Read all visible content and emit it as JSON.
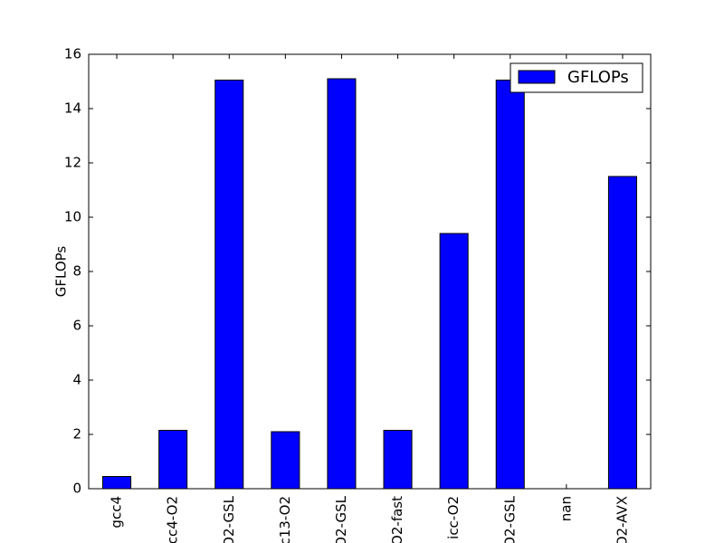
{
  "chart_data": {
    "type": "bar",
    "y_label": "GFLOPs",
    "categories": [
      "gcc4",
      "cc4-O2",
      "O2-GSL",
      "c13-O2",
      "O2-GSL",
      "O2-fast",
      "icc-O2",
      "O2-GSL",
      "nan",
      "O2-AVX"
    ],
    "series": [
      {
        "name": "GFLOPs",
        "color": "#0000ff",
        "values": [
          0.45,
          2.15,
          15.05,
          2.1,
          15.1,
          2.15,
          9.4,
          15.05,
          null,
          11.5
        ]
      }
    ],
    "ylim": [
      0,
      16
    ],
    "yticks": [
      0,
      2,
      4,
      6,
      8,
      10,
      12,
      14,
      16
    ],
    "grid": false,
    "legend": "upper right"
  }
}
